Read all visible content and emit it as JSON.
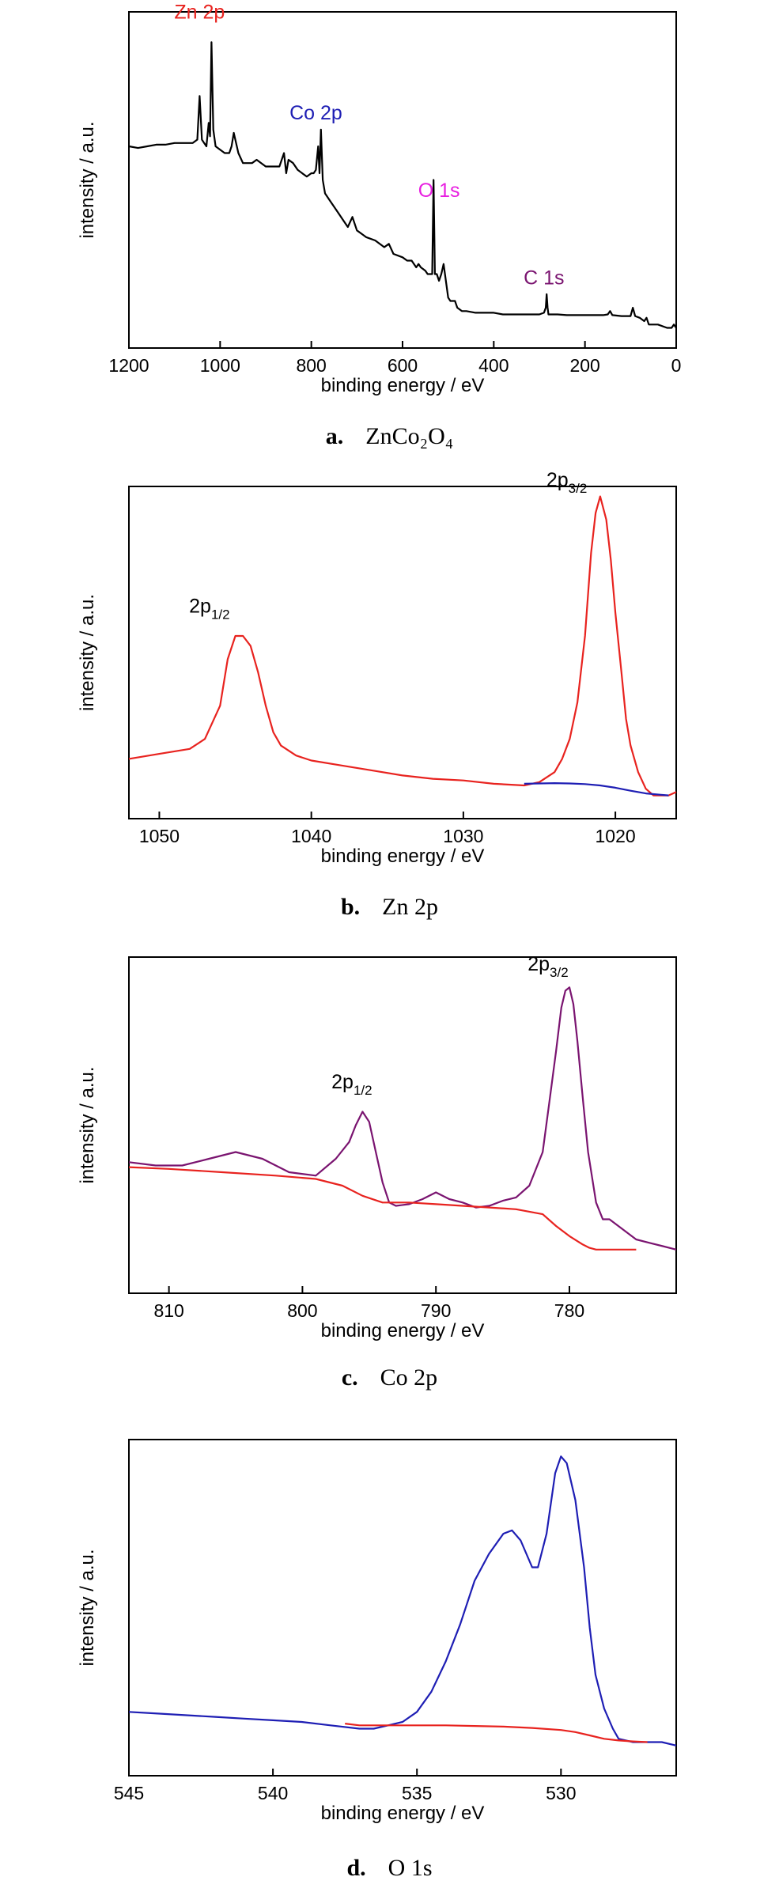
{
  "chart_data": [
    {
      "id": "a",
      "type": "line",
      "caption": {
        "letter": "a.",
        "text": "ZnCo₂O₄"
      },
      "xlabel": "binding energy / eV",
      "ylabel": "intensity / a.u.",
      "xlim": [
        1200,
        0
      ],
      "ylim": [
        0,
        100
      ],
      "xticks": [
        1200,
        1000,
        800,
        600,
        400,
        200,
        0
      ],
      "grid": false,
      "series": [
        {
          "color": "#000000",
          "x": [
            1200,
            1180,
            1160,
            1140,
            1120,
            1100,
            1080,
            1060,
            1050,
            1045,
            1040,
            1035,
            1030,
            1025,
            1022,
            1019,
            1015,
            1010,
            1000,
            990,
            980,
            975,
            970,
            960,
            950,
            940,
            930,
            920,
            900,
            880,
            870,
            860,
            855,
            850,
            840,
            830,
            810,
            800,
            795,
            790,
            785,
            782,
            779,
            775,
            770,
            760,
            750,
            740,
            730,
            720,
            710,
            700,
            690,
            680,
            660,
            640,
            630,
            620,
            600,
            590,
            580,
            575,
            570,
            565,
            560,
            550,
            545,
            540,
            535,
            532,
            529,
            525,
            520,
            515,
            510,
            500,
            495,
            490,
            485,
            480,
            470,
            460,
            440,
            420,
            400,
            380,
            360,
            340,
            320,
            300,
            290,
            286,
            284,
            282,
            280,
            275,
            260,
            240,
            220,
            200,
            180,
            160,
            150,
            145,
            140,
            120,
            100,
            95,
            90,
            80,
            70,
            65,
            60,
            40,
            20,
            10,
            5,
            0
          ],
          "y": [
            60,
            59.5,
            60,
            60.5,
            60.5,
            61,
            61,
            61,
            62,
            75,
            62,
            61,
            60,
            67,
            63,
            91,
            65,
            60,
            59,
            58,
            58,
            60,
            64,
            58,
            55,
            55,
            55,
            56,
            54,
            54,
            54,
            58,
            52,
            56,
            55,
            53,
            51,
            52,
            52,
            53,
            60,
            52,
            65,
            50,
            46,
            44,
            42,
            40,
            38,
            36,
            39,
            35,
            34,
            33,
            32,
            30,
            31,
            28,
            27,
            26,
            26,
            25,
            24,
            25,
            24,
            23,
            22,
            22,
            22,
            50,
            22,
            22,
            20,
            22,
            25,
            15,
            14,
            14,
            14,
            12,
            11,
            11,
            10.5,
            10.5,
            10.5,
            10,
            10,
            10,
            10,
            10,
            10.5,
            12,
            16,
            12,
            10,
            10,
            10,
            9.8,
            9.8,
            9.8,
            9.8,
            9.8,
            10,
            11,
            9.8,
            9.5,
            9.5,
            12,
            9.5,
            9,
            8,
            9,
            7,
            7,
            6,
            6,
            7,
            6
          ]
        }
      ],
      "annotations": [
        {
          "text": "Zn 2p",
          "color": "#e8231f",
          "x": 1045,
          "y": 98
        },
        {
          "text": "Co 2p",
          "color": "#1e1eb4",
          "x": 790,
          "y": 68
        },
        {
          "text": "O 1s",
          "color": "#e81ee0",
          "x": 520,
          "y": 45
        },
        {
          "text": "C 1s",
          "color": "#7a1470",
          "x": 290,
          "y": 19
        }
      ]
    },
    {
      "id": "b",
      "type": "line",
      "caption": {
        "letter": "b.",
        "text": "Zn 2p"
      },
      "xlabel": "binding energy / eV",
      "ylabel": "intensity / a.u.",
      "xlim": [
        1052,
        1016
      ],
      "ylim": [
        0,
        100
      ],
      "xticks": [
        1050,
        1040,
        1030,
        1020
      ],
      "grid": false,
      "series": [
        {
          "color": "#e8231f",
          "x": [
            1052,
            1050,
            1048,
            1047,
            1046,
            1045.5,
            1045,
            1044.5,
            1044,
            1043.5,
            1043,
            1042.5,
            1042,
            1041,
            1040,
            1038,
            1036,
            1034,
            1032,
            1030,
            1028,
            1026,
            1025,
            1024,
            1023.5,
            1023,
            1022.5,
            1022,
            1021.6,
            1021.3,
            1021,
            1020.6,
            1020.3,
            1020,
            1019.6,
            1019.3,
            1019,
            1018.5,
            1018,
            1017.5,
            1017,
            1016.5,
            1016
          ],
          "y": [
            18,
            19.5,
            21,
            24,
            34,
            48,
            55,
            55,
            52,
            44,
            34,
            26,
            22,
            19,
            17.5,
            16,
            14.5,
            13,
            12,
            11.5,
            10.5,
            10,
            11,
            14,
            18,
            24,
            35,
            55,
            80,
            92,
            97,
            90,
            78,
            62,
            44,
            30,
            22,
            14,
            9,
            7,
            7,
            7,
            8
          ]
        },
        {
          "color": "#1e1eb4",
          "x": [
            1026,
            1025,
            1024,
            1023,
            1022,
            1021,
            1020,
            1019,
            1018,
            1017,
            1016.5
          ],
          "y": [
            10.5,
            10.6,
            10.7,
            10.6,
            10.4,
            10,
            9.3,
            8.4,
            7.6,
            7.2,
            7
          ]
        }
      ],
      "annotations": [
        {
          "text": "2p",
          "sub": "1/2",
          "color": "#000000",
          "x": 1046.7,
          "y": 62
        },
        {
          "text": "2p",
          "sub": "3/2",
          "color": "#000000",
          "x": 1023.2,
          "y": 100
        }
      ]
    },
    {
      "id": "c",
      "type": "line",
      "caption": {
        "letter": "c.",
        "text": "Co 2p"
      },
      "xlabel": "binding energy / eV",
      "ylabel": "intensity / a.u.",
      "xlim": [
        813,
        772
      ],
      "ylim": [
        0,
        100
      ],
      "xticks": [
        810,
        800,
        790,
        780
      ],
      "grid": false,
      "series": [
        {
          "color": "#7a1470",
          "x": [
            813,
            811,
            809,
            807,
            805,
            803,
            801,
            799,
            797.5,
            796.5,
            796,
            795.5,
            795,
            794.5,
            794,
            793.5,
            793,
            792,
            791,
            790,
            789,
            788,
            787,
            786,
            785,
            784,
            783,
            782,
            781.5,
            781,
            780.6,
            780.3,
            780,
            779.7,
            779.4,
            779,
            778.6,
            778,
            777.5,
            777,
            776,
            775,
            774,
            773,
            772
          ],
          "y": [
            39,
            38,
            38,
            40,
            42,
            40,
            36,
            35,
            40,
            45,
            50,
            54,
            51,
            42,
            33,
            27,
            26,
            26.5,
            28,
            30,
            28,
            27,
            25.5,
            26,
            27.5,
            28.5,
            32,
            42,
            57,
            72,
            85,
            90,
            91,
            86,
            75,
            58,
            42,
            27,
            22,
            22,
            19,
            16,
            15,
            14,
            13
          ]
        },
        {
          "color": "#e8231f",
          "x": [
            813,
            810,
            806,
            802,
            799,
            797,
            795.5,
            794,
            792,
            790,
            788,
            786,
            784,
            782,
            781,
            780,
            779,
            778.5,
            778,
            777,
            776,
            775
          ],
          "y": [
            37.5,
            37,
            36,
            35,
            34,
            32,
            29,
            27,
            27,
            26.5,
            26,
            25.5,
            25,
            23.5,
            20,
            17,
            14.5,
            13.5,
            13,
            13,
            13,
            13
          ]
        }
      ],
      "annotations": [
        {
          "text": "2p",
          "sub": "1/2",
          "color": "#000000",
          "x": 796.3,
          "y": 61
        },
        {
          "text": "2p",
          "sub": "3/2",
          "color": "#000000",
          "x": 781.6,
          "y": 96
        }
      ]
    },
    {
      "id": "d",
      "type": "line",
      "caption": {
        "letter": "d.",
        "text": "O 1s"
      },
      "xlabel": "binding energy / eV",
      "ylabel": "intensity / a.u.",
      "xlim": [
        545,
        526
      ],
      "ylim": [
        0,
        100
      ],
      "xticks": [
        545,
        540,
        535,
        530
      ],
      "grid": false,
      "series": [
        {
          "color": "#1e1eb4",
          "x": [
            545,
            544,
            543,
            542,
            541,
            540,
            539,
            538,
            537,
            536.5,
            536,
            535.5,
            535,
            534.5,
            534,
            533.5,
            533,
            532.5,
            532,
            531.7,
            531.4,
            531,
            530.8,
            530.5,
            530.2,
            530,
            529.8,
            529.5,
            529.2,
            529,
            528.8,
            528.5,
            528.2,
            528,
            527.5,
            527,
            526.5,
            526
          ],
          "y": [
            19,
            18.5,
            18,
            17.5,
            17,
            16.5,
            16,
            15,
            14,
            14,
            15,
            16,
            19,
            25,
            34,
            45,
            58,
            66,
            72,
            73,
            70,
            62,
            62,
            72,
            90,
            95,
            93,
            82,
            62,
            44,
            30,
            20,
            14,
            11,
            10,
            10,
            10,
            9
          ]
        },
        {
          "color": "#e8231f",
          "x": [
            537.5,
            537,
            536,
            535,
            534,
            533,
            532,
            531,
            530,
            529.5,
            529,
            528.5,
            528,
            527.5,
            527
          ],
          "y": [
            15.5,
            15,
            15,
            15,
            15,
            14.8,
            14.6,
            14.2,
            13.6,
            13,
            12,
            11,
            10.5,
            10.2,
            10
          ]
        }
      ],
      "annotations": []
    }
  ]
}
